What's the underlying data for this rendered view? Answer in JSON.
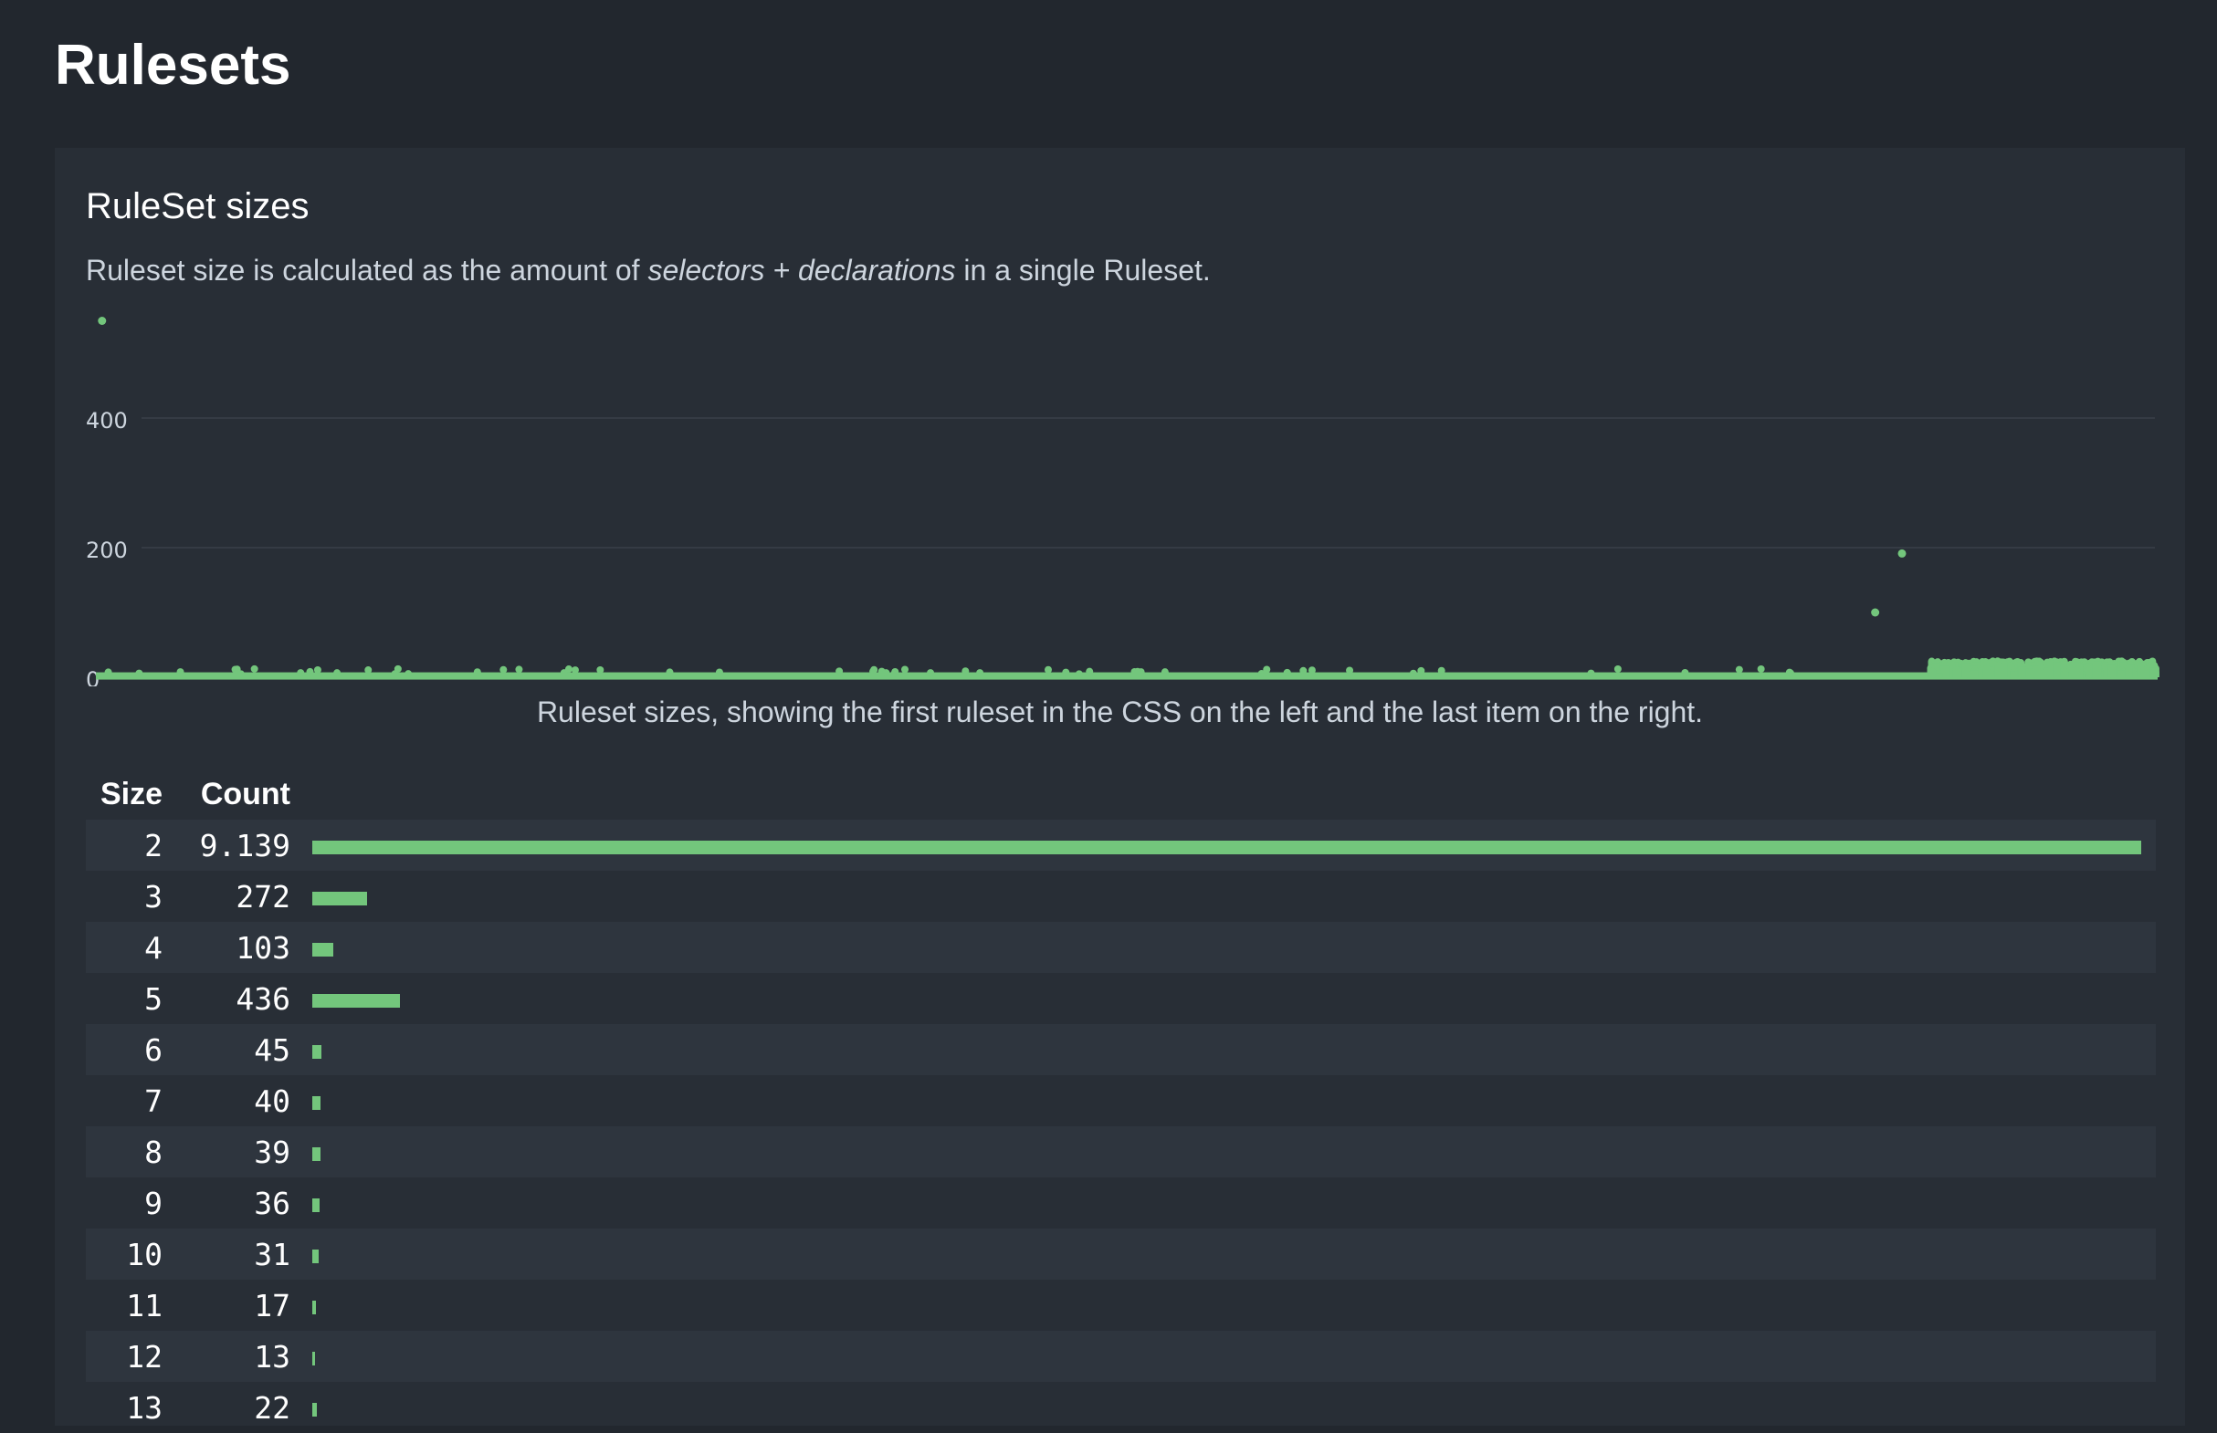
{
  "page_title": "Rulesets",
  "section": {
    "title": "RuleSet sizes",
    "description_prefix": "Ruleset size is calculated as the amount of ",
    "description_em": "selectors + declarations",
    "description_suffix": " in a single Ruleset.",
    "caption": "Ruleset sizes, showing the first ruleset in the CSS on the left and the last item on the right."
  },
  "colors": {
    "accent": "#73c67c",
    "background": "#22272e",
    "card": "#282e36",
    "grid": "#353b44"
  },
  "chart_data": {
    "type": "scatter",
    "xlabel": "",
    "ylabel": "",
    "yticks": [
      "0",
      "200",
      "400"
    ],
    "ylim": [
      0,
      560
    ],
    "grid": true,
    "baseline_value": 2,
    "outliers": [
      {
        "x_fraction": 0.003,
        "y": 550
      },
      {
        "x_fraction": 0.863,
        "y": 100
      },
      {
        "x_fraction": 0.876,
        "y": 191
      }
    ],
    "dense_region": {
      "from_fraction": 0.89,
      "to_fraction": 1.0,
      "y_range": [
        5,
        25
      ]
    }
  },
  "table": {
    "headers": [
      "Size",
      "Count"
    ],
    "max_count": 9139,
    "rows": [
      {
        "size": "2",
        "count": "9.139",
        "value": 9139
      },
      {
        "size": "3",
        "count": "272",
        "value": 272
      },
      {
        "size": "4",
        "count": "103",
        "value": 103
      },
      {
        "size": "5",
        "count": "436",
        "value": 436
      },
      {
        "size": "6",
        "count": "45",
        "value": 45
      },
      {
        "size": "7",
        "count": "40",
        "value": 40
      },
      {
        "size": "8",
        "count": "39",
        "value": 39
      },
      {
        "size": "9",
        "count": "36",
        "value": 36
      },
      {
        "size": "10",
        "count": "31",
        "value": 31
      },
      {
        "size": "11",
        "count": "17",
        "value": 17
      },
      {
        "size": "12",
        "count": "13",
        "value": 13
      },
      {
        "size": "13",
        "count": "22",
        "value": 22
      }
    ]
  }
}
